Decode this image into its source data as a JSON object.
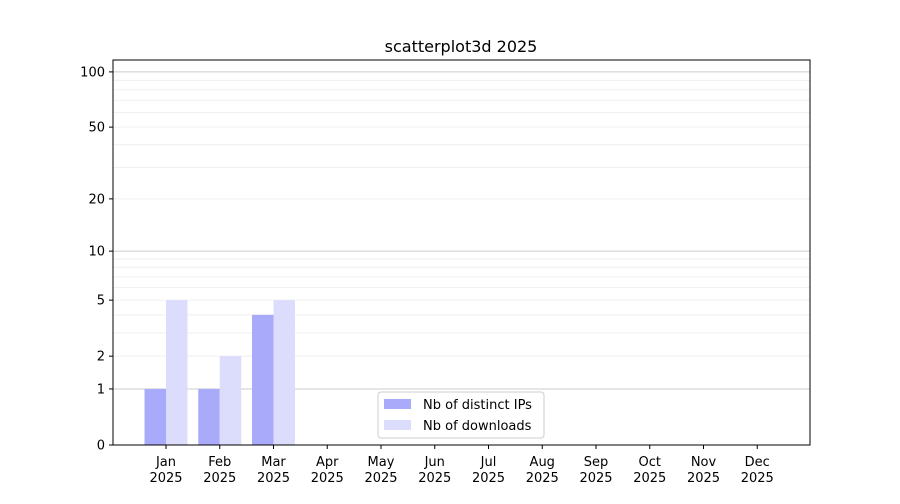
{
  "chart_data": {
    "type": "bar",
    "title": "scatterplot3d 2025",
    "xlabel": "",
    "ylabel": "",
    "yscale": "log(1+y)",
    "ylim": [
      0,
      116
    ],
    "yticks": [
      0,
      1,
      2,
      5,
      10,
      20,
      50,
      100
    ],
    "ytick_labels": [
      "0",
      "1",
      "2",
      "5",
      "10",
      "20",
      "50",
      "100"
    ],
    "grid": true,
    "legend_position": "lower-center",
    "categories": [
      "Jan\n2025",
      "Feb\n2025",
      "Mar\n2025",
      "Apr\n2025",
      "May\n2025",
      "Jun\n2025",
      "Jul\n2025",
      "Aug\n2025",
      "Sep\n2025",
      "Oct\n2025",
      "Nov\n2025",
      "Dec\n2025"
    ],
    "series": [
      {
        "name": "Nb of distinct IPs",
        "color": "#aaaafb",
        "values": [
          1,
          1,
          4,
          null,
          null,
          null,
          null,
          null,
          null,
          null,
          null,
          null
        ]
      },
      {
        "name": "Nb of downloads",
        "color": "#dcdcfd",
        "values": [
          5,
          2,
          5,
          null,
          null,
          null,
          null,
          null,
          null,
          null,
          null,
          null
        ]
      }
    ]
  }
}
